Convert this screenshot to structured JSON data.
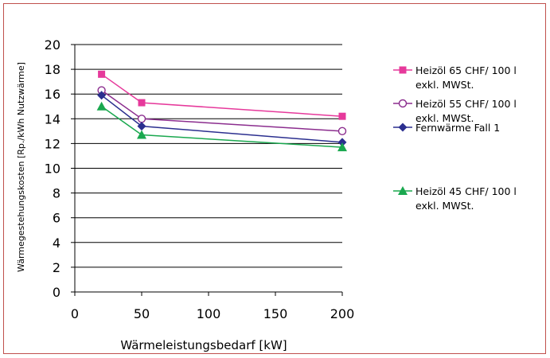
{
  "chart_data": {
    "type": "line",
    "xlabel": "Wärmeleistungsbedarf [kW]",
    "ylabel": "Wärmegestehungskosten [Rp./kWh Nutzwärme]",
    "xlim": [
      0,
      200
    ],
    "ylim": [
      0,
      20
    ],
    "x_ticks": [
      "0",
      "50",
      "100",
      "150",
      "200"
    ],
    "y_ticks": [
      "0",
      "2",
      "4",
      "6",
      "8",
      "10",
      "12",
      "14",
      "16",
      "18",
      "20"
    ],
    "grid": "horizontal",
    "legend_position": "right",
    "series": [
      {
        "name": "Heizöl 65 CHF/ 100 l exkl. MWSt.",
        "name_lines": [
          "Heizöl 65 CHF/ 100 l",
          "exkl. MWSt."
        ],
        "color": "#e6399b",
        "marker": "square",
        "x": [
          20,
          50,
          200
        ],
        "y": [
          17.6,
          15.3,
          14.2
        ]
      },
      {
        "name": "Heizöl 55 CHF/ 100 l exkl. MWSt.",
        "name_lines": [
          "Heizöl 55 CHF/ 100 l",
          "exkl. MWSt."
        ],
        "color": "#8b2d8e",
        "marker": "circle-open",
        "x": [
          20,
          50,
          200
        ],
        "y": [
          16.3,
          14.0,
          13.0
        ]
      },
      {
        "name": "Fernwärme Fall 1",
        "name_lines": [
          "Fernwärme Fall 1"
        ],
        "color": "#2b2f8f",
        "marker": "diamond",
        "x": [
          20,
          50,
          200
        ],
        "y": [
          15.9,
          13.4,
          12.1
        ]
      },
      {
        "name": "Heizöl 45 CHF/ 100 l exkl. MWSt.",
        "name_lines": [
          "Heizöl 45 CHF/ 100 l",
          "exkl. MWSt."
        ],
        "color": "#1aa84f",
        "marker": "triangle",
        "x": [
          20,
          50,
          200
        ],
        "y": [
          15.0,
          12.7,
          11.7
        ]
      }
    ]
  }
}
